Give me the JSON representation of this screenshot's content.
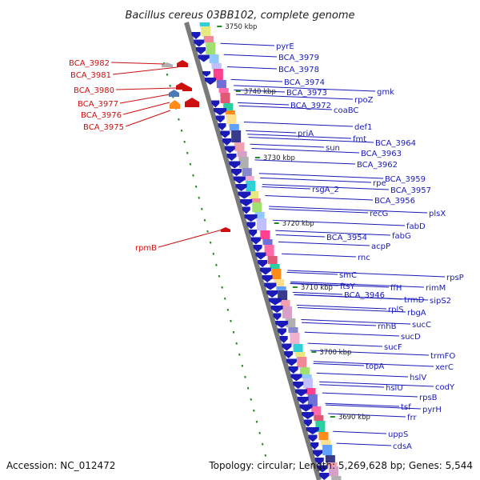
{
  "title": "Bacillus cereus 03BB102, complete genome",
  "footer": {
    "accession": "Accession: NC_012472",
    "summary": "Topology: circular; Length: 5,269,628 bp; Genes: 5,544"
  },
  "kbp_labels": [
    "3750 kbp",
    "3740 kbp",
    "3730 kbp",
    "3720 kbp",
    "3710 kbp",
    "3700 kbp",
    "3690 kbp"
  ],
  "colors": {
    "forward_gene": "#cc1010",
    "reverse_gene": "#1a1ab8",
    "backbone": "#7a7a7a",
    "tick": "#228b22"
  },
  "genes_forward": [
    "BCA_3982",
    "BCA_3981",
    "BCA_3980",
    "BCA_3977",
    "BCA_3976",
    "BCA_3975",
    "rpmB"
  ],
  "genes_reverse": [
    "pyrE",
    "BCA_3979",
    "BCA_3978",
    "BCA_3974",
    "BCA_3973",
    "gmk",
    "rpoZ",
    "BCA_3972",
    "coaBC",
    "def1",
    "priA",
    "fmt",
    "sun",
    "BCA_3964",
    "BCA_3963",
    "BCA_3962",
    "rpe",
    "BCA_3959",
    "rsgA_2",
    "BCA_3957",
    "BCA_3956",
    "recG",
    "plsX",
    "fabD",
    "BCA_3954",
    "fabG",
    "acpP",
    "rnc",
    "smC",
    "rpsP",
    "ftsY",
    "ffH",
    "rimM",
    "BCA_3946",
    "trmD",
    "sipS2",
    "rplS",
    "rbgA",
    "rnhB",
    "sucC",
    "sucD",
    "sucF",
    "trmFO",
    "topA",
    "xerC",
    "hslV",
    "hslU",
    "codY",
    "rpsB",
    "tsf",
    "pyrH",
    "frr",
    "uppS",
    "cdsA"
  ]
}
